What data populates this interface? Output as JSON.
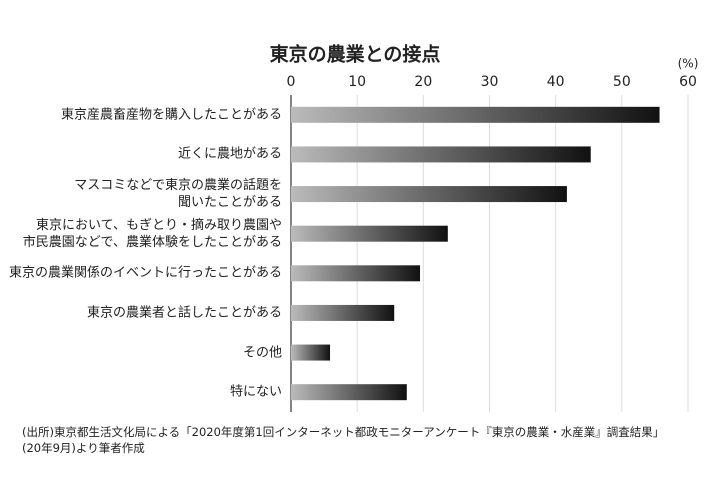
{
  "chart_data": {
    "type": "bar",
    "orientation": "horizontal",
    "title": "東京の農業との接点",
    "unit": "(%)",
    "categories": [
      "東京産農畜産物を購入したことがある",
      "近くに農地がある",
      "マスコミなどで東京の農業の話題を\n聞いたことがある",
      "東京において、もぎとり・摘み取り農園や\n市民農園などで、農業体験をしたことがある",
      "東京の農業関係のイベントに行ったことがある",
      "東京の農業者と話したことがある",
      "その他",
      "特にない"
    ],
    "values": [
      55.7,
      45.3,
      41.7,
      23.7,
      19.5,
      15.6,
      5.9,
      17.5
    ],
    "color": "#111111",
    "xlim": [
      0,
      60
    ],
    "xticks": [
      0,
      10,
      20,
      30,
      40,
      50,
      60
    ],
    "grid": true,
    "source": "(出所)東京都生活文化局による「2020年度第1回インターネット都政モニターアンケート『東京の農業・水産業』調査結果」\n(20年9月)より筆者作成"
  }
}
